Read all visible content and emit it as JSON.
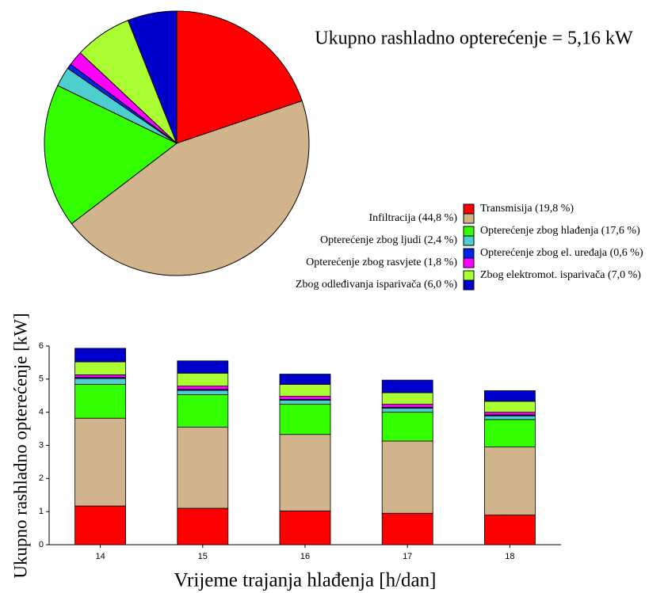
{
  "chart_data": [
    {
      "type": "pie",
      "title": "Ukupno rashladno opterećenje = 5,16 kW",
      "categories": [
        "Transmisija (19,8 %)",
        "Infiltracija (44,8 %)",
        "Opterećenje zbog hlađenja (17,6 %)",
        "Opterećenje zbog ljudi (2,4 %)",
        "Opterećenje zbog el. uređaja (0,6 %)",
        "Opterećenje zbog rasvjete (1,8 %)",
        "Zbog elektromot. isparivača (7,0 %)",
        "Zbog odleđivanja isparivača (6,0 %)"
      ],
      "values": [
        19.8,
        44.8,
        17.6,
        2.4,
        0.6,
        1.8,
        7.0,
        6.0
      ],
      "colors": [
        "#ff0000",
        "#d2b48c",
        "#33ff00",
        "#4dcfcf",
        "#0022ee",
        "#ff00ff",
        "#aaff33",
        "#0000cc"
      ]
    },
    {
      "type": "stacked_bar",
      "categories": [
        "14",
        "15",
        "16",
        "17",
        "18"
      ],
      "series": [
        {
          "color": "#ff0000",
          "values": [
            1.17,
            1.1,
            1.02,
            0.95,
            0.9
          ]
        },
        {
          "color": "#d2b48c",
          "values": [
            2.65,
            2.45,
            2.31,
            2.18,
            2.05
          ]
        },
        {
          "color": "#33ff00",
          "values": [
            1.02,
            0.98,
            0.91,
            0.87,
            0.83
          ]
        },
        {
          "color": "#4dcfcf",
          "values": [
            0.18,
            0.13,
            0.12,
            0.12,
            0.11
          ]
        },
        {
          "color": "#0022ee",
          "values": [
            0.03,
            0.03,
            0.03,
            0.03,
            0.03
          ]
        },
        {
          "color": "#ff00ff",
          "values": [
            0.08,
            0.1,
            0.09,
            0.09,
            0.08
          ]
        },
        {
          "color": "#aaff33",
          "values": [
            0.39,
            0.39,
            0.36,
            0.35,
            0.33
          ]
        },
        {
          "color": "#0000cc",
          "values": [
            0.41,
            0.37,
            0.31,
            0.38,
            0.32
          ]
        }
      ],
      "ylim": [
        0,
        6
      ],
      "yticks": [
        0,
        1,
        2,
        3,
        4,
        5,
        6
      ],
      "xlabel": "Vrijeme trajanja hlađenja [h/dan]",
      "ylabel": "Ukupno rashladno opterećenje [kW]"
    }
  ]
}
